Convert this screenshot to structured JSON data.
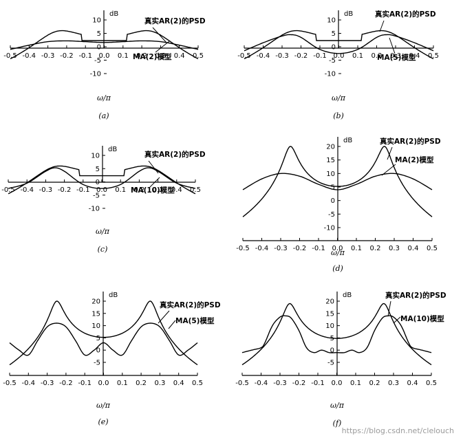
{
  "watermark": "https://blog.csdn.net/clelouch",
  "chart_data": [
    {
      "type": "line",
      "panel": "(a)",
      "xlabel": "ω/π",
      "ylabel": "dB",
      "xticks": [
        -0.5,
        -0.4,
        -0.3,
        -0.2,
        -0.1,
        0,
        0.1,
        0.2,
        0.3,
        0.4,
        0.5
      ],
      "xtick_labels": [
        "-0.5",
        "-0.4",
        "-0.3",
        "-0.2",
        "-0.1",
        "0.0",
        "0.1",
        "0.2",
        "0.3",
        "0.4",
        "0.5"
      ],
      "yticks": [
        -10,
        -5,
        0,
        5,
        10
      ],
      "ytick_labels": [
        "-10",
        "-5",
        "0",
        "5",
        "10"
      ],
      "xlim": [
        -0.5,
        0.5
      ],
      "ylim": [
        -13,
        13
      ],
      "series": [
        {
          "name": "真实AR(2)的PSD",
          "kind": "ar",
          "peak_db": 6,
          "base_db": -4.5,
          "p_db": 2.3,
          "bw": 0.11
        },
        {
          "name": "MA(2)模型",
          "kind": "pts",
          "x": [
            -0.5,
            -0.4,
            -0.3,
            -0.2,
            -0.1,
            0,
            0.1,
            0.2,
            0.3,
            0.4,
            0.5
          ],
          "y": [
            -1,
            0.6,
            1.9,
            2.2,
            1.9,
            1.6,
            1.9,
            2.2,
            1.9,
            0.6,
            -1
          ]
        }
      ],
      "annotations": [
        "真实AR(2)的PSD",
        "MA(2)模型"
      ]
    },
    {
      "type": "line",
      "panel": "(b)",
      "xlabel": "ω/π",
      "ylabel": "dB",
      "xticks": [
        -0.5,
        -0.4,
        -0.3,
        -0.2,
        -0.1,
        0,
        0.1,
        0.2,
        0.3,
        0.4,
        0.5
      ],
      "xtick_labels": [
        "-0.5",
        "-0.4",
        "-0.3",
        "-0.2",
        "-0.1",
        "0.0",
        "0.1",
        "0.2",
        "0.3",
        "0.4",
        "0.5"
      ],
      "yticks": [
        -10,
        -5,
        0,
        5,
        10
      ],
      "ytick_labels": [
        "-10",
        "-5",
        "0",
        "5",
        "10"
      ],
      "xlim": [
        -0.5,
        0.5
      ],
      "ylim": [
        -13,
        13
      ],
      "series": [
        {
          "name": "真实AR(2)的PSD",
          "kind": "ar",
          "peak_db": 6,
          "base_db": -4.5,
          "p_db": 2.3,
          "bw": 0.11
        },
        {
          "name": "MA(5)模型",
          "kind": "pts",
          "x": [
            -0.5,
            -0.4,
            -0.3,
            -0.25,
            -0.2,
            -0.1,
            0,
            0.1,
            0.2,
            0.25,
            0.3,
            0.4,
            0.5
          ],
          "y": [
            -1.5,
            1.5,
            4,
            4.5,
            3.5,
            -1,
            -2.5,
            -1,
            3.5,
            4.5,
            4,
            1.5,
            -1.5
          ]
        }
      ],
      "annotations": [
        "真实AR(2)的PSD",
        "MA(5)模型"
      ]
    },
    {
      "type": "line",
      "panel": "(c)",
      "xlabel": "ω/π",
      "ylabel": "dB",
      "xticks": [
        -0.5,
        -0.4,
        -0.3,
        -0.2,
        -0.1,
        0,
        0.1,
        0.2,
        0.3,
        0.4,
        0.5
      ],
      "xtick_labels": [
        "-0.5",
        "-0.4",
        "-0.3",
        "-0.2",
        "-0.1",
        "0.0",
        "0.1",
        "0.2",
        "0.3",
        "0.4",
        "0.5"
      ],
      "yticks": [
        -10,
        -5,
        0,
        5,
        10
      ],
      "ytick_labels": [
        "-10",
        "-5",
        "0",
        "5",
        "10"
      ],
      "xlim": [
        -0.5,
        0.5
      ],
      "ylim": [
        -13,
        13
      ],
      "series": [
        {
          "name": "真实AR(2)的PSD",
          "kind": "ar",
          "peak_db": 6,
          "base_db": -4.5,
          "p_db": 2.3,
          "bw": 0.11
        },
        {
          "name": "MA(10)模型",
          "kind": "pts",
          "x": [
            -0.5,
            -0.4,
            -0.3,
            -0.25,
            -0.2,
            -0.1,
            0,
            0.1,
            0.2,
            0.25,
            0.3,
            0.4,
            0.5
          ],
          "y": [
            -2.5,
            -0.5,
            4,
            5.3,
            4,
            -1,
            -2.5,
            -1,
            4,
            5.3,
            4,
            -0.5,
            -2.5
          ]
        }
      ],
      "annotations": [
        "真实AR(2)的PSD",
        "MA(10)模型"
      ]
    },
    {
      "type": "line",
      "panel": "(d)",
      "xlabel": "ω/π",
      "ylabel": "dB",
      "xticks": [
        -0.5,
        -0.4,
        -0.3,
        -0.2,
        -0.1,
        0,
        0.1,
        0.2,
        0.3,
        0.4,
        0.5
      ],
      "xtick_labels": [
        "-0.5",
        "-0.4",
        "-0.3",
        "-0.2",
        "-0.1",
        "0.0",
        "0.1",
        "0.2",
        "0.3",
        "0.4",
        "0.5"
      ],
      "yticks": [
        -10,
        -5,
        0,
        5,
        10,
        15,
        20
      ],
      "ytick_labels": [
        "-10",
        "-5",
        "0",
        "5",
        "10",
        "15",
        "20"
      ],
      "xlim": [
        -0.5,
        0.5
      ],
      "ylim": [
        -14,
        24
      ],
      "series": [
        {
          "name": "真实AR(2)的PSD",
          "kind": "ar",
          "peak_db": 20,
          "base_db": -6,
          "p_db": 0,
          "bw": 0.03
        },
        {
          "name": "MA(2)模型",
          "kind": "pts",
          "x": [
            -0.5,
            -0.4,
            -0.3,
            -0.2,
            -0.1,
            0,
            0.1,
            0.2,
            0.3,
            0.4,
            0.5
          ],
          "y": [
            4,
            8,
            10,
            9,
            6,
            4,
            6,
            9,
            10,
            8,
            4
          ]
        }
      ],
      "annotations": [
        "真实AR(2)的PSD",
        "MA(2)模型"
      ]
    },
    {
      "type": "line",
      "panel": "(e)",
      "xlabel": "ω/π",
      "ylabel": "dB",
      "xticks": [
        -0.5,
        -0.4,
        -0.3,
        -0.2,
        -0.1,
        0,
        0.1,
        0.2,
        0.3,
        0.4,
        0.5
      ],
      "xtick_labels": [
        "-0.5",
        "-0.4",
        "-0.3",
        "-0.2",
        "-0.1",
        "0.0",
        "0.1",
        "0.2",
        "0.3",
        "0.4",
        "0.5"
      ],
      "yticks": [
        -5,
        0,
        5,
        10,
        15,
        20
      ],
      "ytick_labels": [
        "-5",
        "0",
        "5",
        "10",
        "15",
        "20"
      ],
      "xlim": [
        -0.5,
        0.5
      ],
      "ylim": [
        -8,
        24
      ],
      "series": [
        {
          "name": "真实AR(2)的PSD",
          "kind": "ar",
          "peak_db": 20,
          "base_db": -6,
          "p_db": 0,
          "bw": 0.03
        },
        {
          "name": "MA(5)模型",
          "kind": "pts",
          "x": [
            -0.5,
            -0.45,
            -0.4,
            -0.35,
            -0.3,
            -0.25,
            -0.2,
            -0.15,
            -0.1,
            -0.05,
            0,
            0.05,
            0.1,
            0.15,
            0.2,
            0.25,
            0.3,
            0.35,
            0.4,
            0.45,
            0.5
          ],
          "y": [
            3,
            0,
            -2,
            4,
            9.5,
            11,
            9.5,
            4,
            -2,
            0,
            3,
            0,
            -2,
            4,
            9.5,
            11,
            9.5,
            4,
            -2,
            0,
            3
          ]
        }
      ],
      "annotations": [
        "真实AR(2)的PSD",
        "MA(5)模型"
      ]
    },
    {
      "type": "line",
      "panel": "(f)",
      "xlabel": "ω/π",
      "ylabel": "dB",
      "xticks": [
        -0.5,
        -0.4,
        -0.3,
        -0.2,
        -0.1,
        0,
        0.1,
        0.2,
        0.3,
        0.4,
        0.5
      ],
      "xtick_labels": [
        "-0.5",
        "-0.4",
        "-0.3",
        "-0.2",
        "-0.1",
        "0.0",
        "0.1",
        "0.2",
        "0.3",
        "0.4",
        "0.5"
      ],
      "yticks": [
        -5,
        0,
        5,
        10,
        15,
        20
      ],
      "ytick_labels": [
        "-5",
        "0",
        "5",
        "10",
        "15",
        "20"
      ],
      "xlim": [
        -0.5,
        0.5
      ],
      "ylim": [
        -8,
        24
      ],
      "series": [
        {
          "name": "真实AR(2)的PSD",
          "kind": "ar",
          "peak_db": 19,
          "base_db": -6,
          "p_db": 0,
          "bw": 0.03
        },
        {
          "name": "MA(10)模型",
          "kind": "pts",
          "x": [
            -0.5,
            -0.45,
            -0.4,
            -0.38,
            -0.34,
            -0.3,
            -0.27,
            -0.24,
            -0.2,
            -0.16,
            -0.12,
            -0.08,
            -0.04,
            0,
            0.04,
            0.08,
            0.12,
            0.16,
            0.2,
            0.24,
            0.27,
            0.3,
            0.34,
            0.38,
            0.4,
            0.45,
            0.5
          ],
          "y": [
            -1,
            0,
            1,
            3,
            10,
            13.5,
            14,
            13,
            8,
            1,
            -1,
            0,
            -1,
            -1,
            -1,
            0,
            -1,
            1,
            8,
            13,
            14,
            13.5,
            10,
            3,
            1,
            0,
            -1
          ]
        }
      ],
      "annotations": [
        "真实AR(2)的PSD",
        "MA(10)模型"
      ]
    }
  ]
}
